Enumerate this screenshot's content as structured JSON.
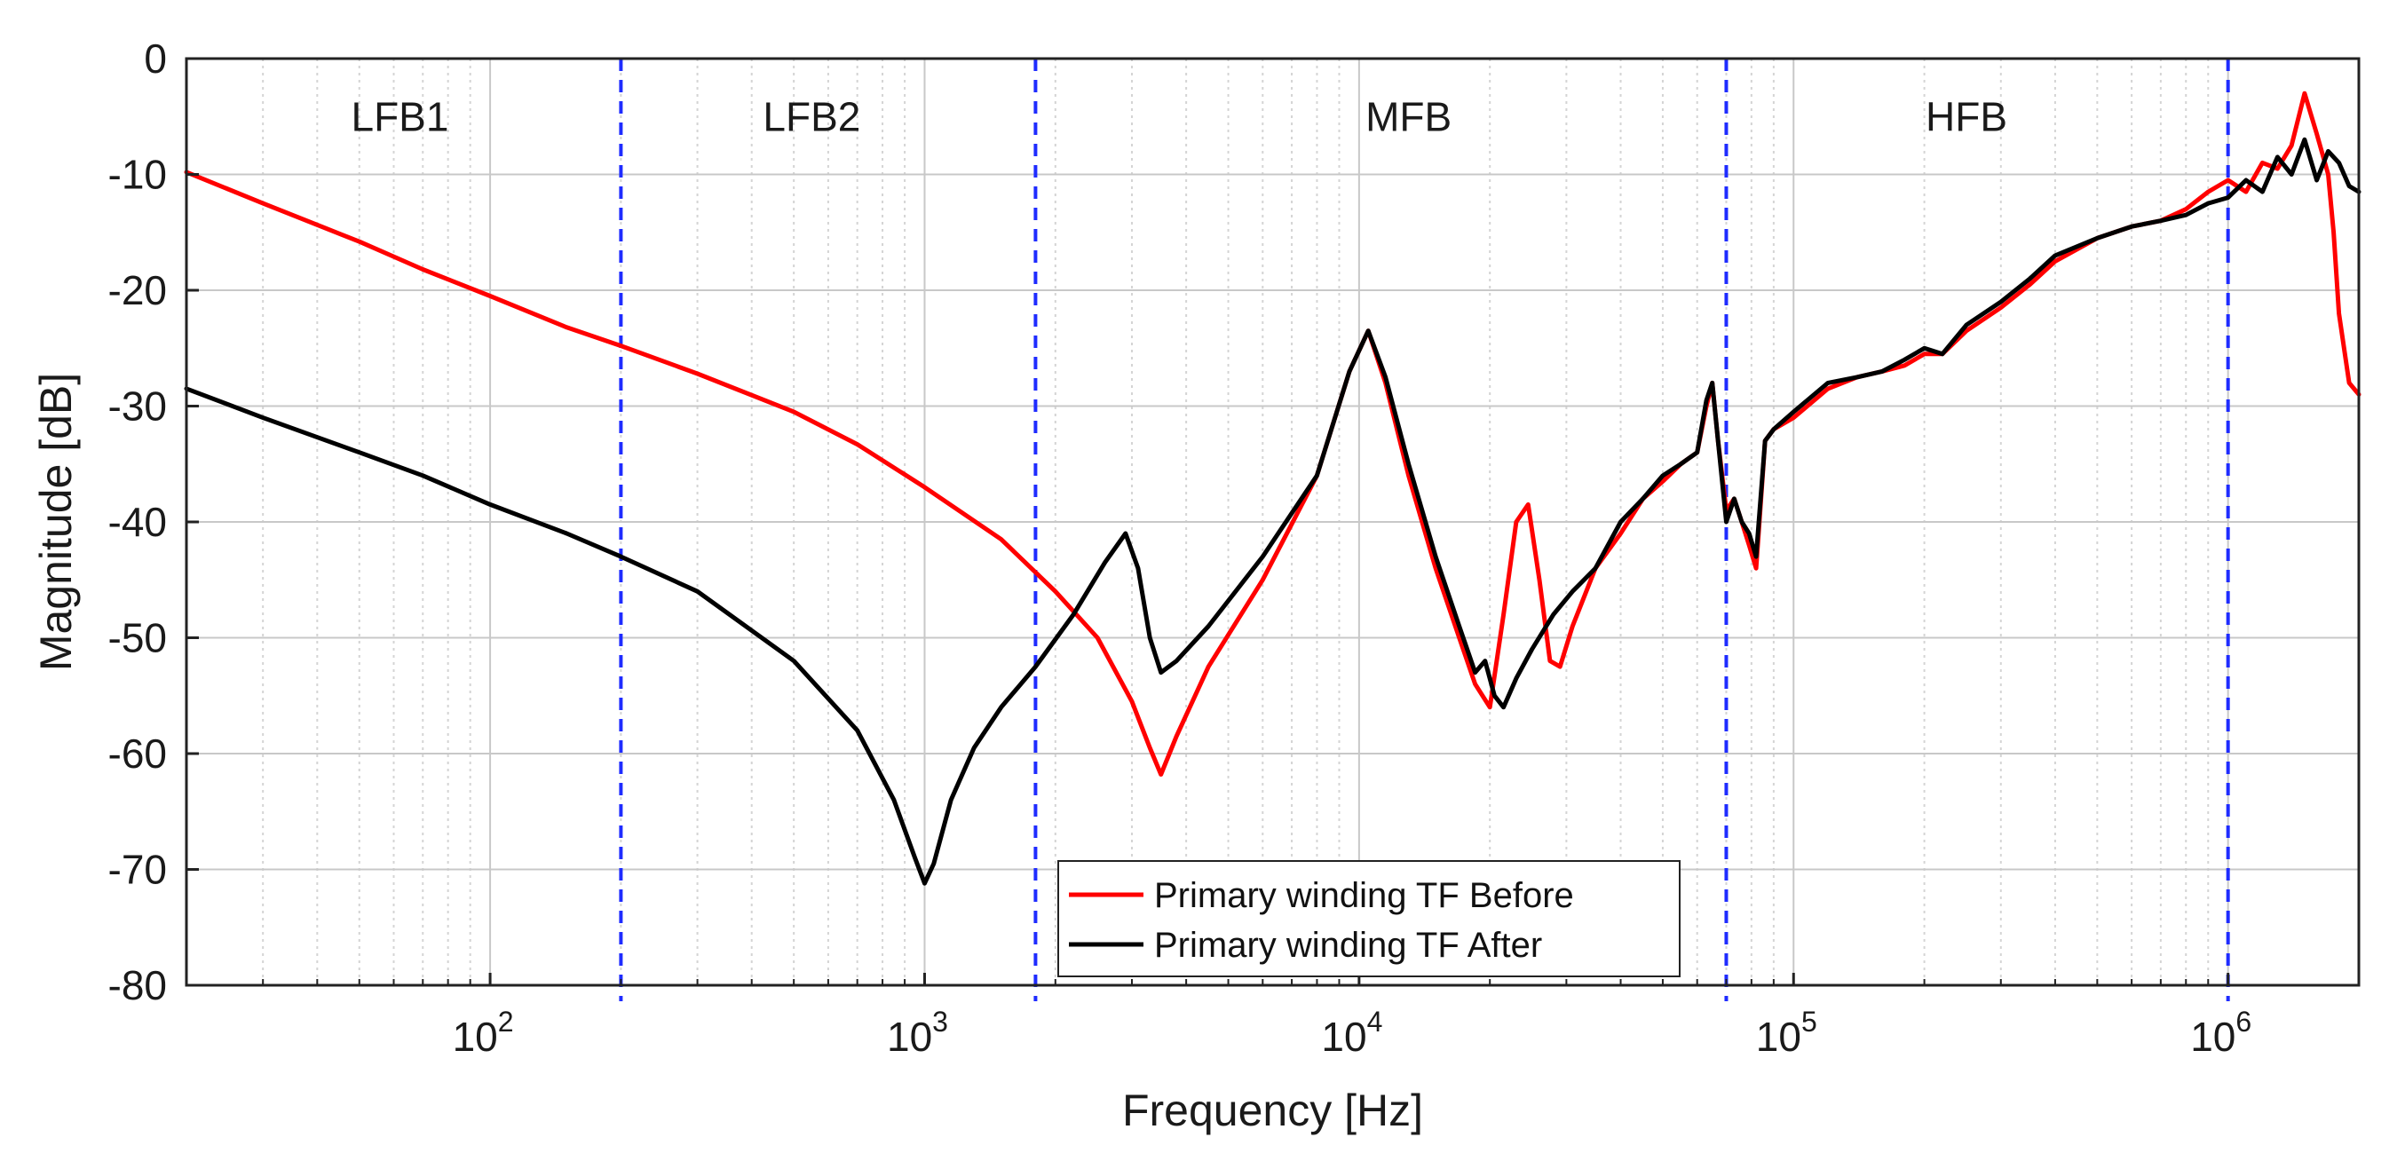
{
  "chart_data": {
    "type": "line",
    "title": "",
    "xlabel": "Frequency [Hz]",
    "ylabel": "Magnitude [dB]",
    "xscale": "log",
    "xlim": [
      20,
      2000000
    ],
    "ylim": [
      -80,
      0
    ],
    "grid": true,
    "minor_grid": true,
    "x_ticks": [
      {
        "value": 100,
        "base": "10",
        "exp": "2"
      },
      {
        "value": 1000,
        "base": "10",
        "exp": "3"
      },
      {
        "value": 10000,
        "base": "10",
        "exp": "4"
      },
      {
        "value": 100000,
        "base": "10",
        "exp": "5"
      },
      {
        "value": 1000000,
        "base": "10",
        "exp": "6"
      }
    ],
    "y_ticks": [
      0,
      -10,
      -20,
      -30,
      -40,
      -50,
      -60,
      -70,
      -80
    ],
    "bands": [
      {
        "boundary": 200
      },
      {
        "boundary": 1800
      },
      {
        "boundary": 70000
      },
      {
        "boundary": 1000000
      }
    ],
    "band_labels": [
      {
        "label": "LFB1",
        "x": 62,
        "y": -5
      },
      {
        "label": "LFB2",
        "x": 550,
        "y": -5
      },
      {
        "label": "MFB",
        "x": 13000,
        "y": -5
      },
      {
        "label": "HFB",
        "x": 250000,
        "y": -5
      }
    ],
    "legend": {
      "position": "bottom-center"
    },
    "series": [
      {
        "name": "Primary winding TF Before",
        "color": "#ff0000",
        "x": [
          20,
          30,
          50,
          70,
          100,
          150,
          200,
          300,
          500,
          700,
          1000,
          1500,
          2000,
          2500,
          3000,
          3300,
          3500,
          3800,
          4500,
          6000,
          8000,
          9500,
          10500,
          11500,
          13000,
          15000,
          17000,
          18500,
          20000,
          21500,
          23000,
          24500,
          26000,
          27500,
          29000,
          31000,
          35000,
          40000,
          45000,
          50000,
          55000,
          60000,
          63000,
          65000,
          67000,
          70000,
          73000,
          76000,
          79000,
          82000,
          86000,
          90000,
          100000,
          120000,
          140000,
          160000,
          180000,
          200000,
          220000,
          250000,
          300000,
          350000,
          400000,
          500000,
          600000,
          700000,
          800000,
          900000,
          1000000,
          1100000,
          1200000,
          1300000,
          1400000,
          1500000,
          1600000,
          1700000,
          1750000,
          1800000,
          1900000,
          2000000
        ],
        "y": [
          -9.8,
          -12.5,
          -15.8,
          -18.2,
          -20.5,
          -23.2,
          -24.8,
          -27.2,
          -30.5,
          -33.3,
          -37.0,
          -41.5,
          -46.0,
          -50.0,
          -55.5,
          -59.5,
          -61.8,
          -58.5,
          -52.5,
          -45.0,
          -36.0,
          -27.0,
          -23.5,
          -28.0,
          -36.0,
          -44.0,
          -50.0,
          -54.0,
          -56.0,
          -48.0,
          -40.0,
          -38.5,
          -45.0,
          -52.0,
          -52.5,
          -49.0,
          -44.0,
          -41.0,
          -38.0,
          -36.5,
          -35.0,
          -34.0,
          -30.0,
          -28.0,
          -33.0,
          -39.0,
          -38.0,
          -40.0,
          -42.0,
          -44.0,
          -33.0,
          -32.0,
          -31.0,
          -28.5,
          -27.5,
          -27.0,
          -26.5,
          -25.5,
          -25.5,
          -23.5,
          -21.5,
          -19.5,
          -17.5,
          -15.5,
          -14.5,
          -14.0,
          -13.0,
          -11.5,
          -10.5,
          -11.5,
          -9.0,
          -9.5,
          -7.5,
          -3.0,
          -6.5,
          -10.0,
          -15.0,
          -22.0,
          -28.0,
          -29.0
        ]
      },
      {
        "name": "Primary winding TF After",
        "color": "#000000",
        "x": [
          20,
          30,
          50,
          70,
          100,
          150,
          200,
          300,
          500,
          700,
          850,
          950,
          1000,
          1050,
          1150,
          1300,
          1500,
          1800,
          2200,
          2600,
          2900,
          3100,
          3300,
          3500,
          3800,
          4500,
          6000,
          8000,
          9500,
          10500,
          11500,
          13000,
          15000,
          17000,
          18500,
          19500,
          20500,
          21500,
          23000,
          25000,
          28000,
          31000,
          35000,
          40000,
          45000,
          50000,
          55000,
          60000,
          63000,
          65000,
          67000,
          70000,
          73000,
          76000,
          79000,
          82000,
          86000,
          90000,
          100000,
          120000,
          140000,
          160000,
          180000,
          200000,
          220000,
          250000,
          300000,
          350000,
          400000,
          500000,
          600000,
          700000,
          800000,
          900000,
          1000000,
          1100000,
          1200000,
          1300000,
          1400000,
          1500000,
          1600000,
          1700000,
          1800000,
          1900000,
          2000000
        ],
        "y": [
          -28.5,
          -31.0,
          -34.0,
          -36.0,
          -38.5,
          -41.0,
          -43.0,
          -46.0,
          -52.0,
          -58.0,
          -64.0,
          -69.0,
          -71.2,
          -69.5,
          -64.0,
          -59.5,
          -56.0,
          -52.5,
          -48.0,
          -43.5,
          -41.0,
          -44.0,
          -50.0,
          -53.0,
          -52.0,
          -49.0,
          -43.0,
          -36.0,
          -27.0,
          -23.5,
          -27.5,
          -35.0,
          -43.0,
          -49.0,
          -53.0,
          -52.0,
          -55.0,
          -56.0,
          -53.5,
          -51.0,
          -48.0,
          -46.0,
          -44.0,
          -40.0,
          -38.0,
          -36.0,
          -35.0,
          -34.0,
          -29.5,
          -28.0,
          -33.0,
          -40.0,
          -38.0,
          -40.0,
          -41.0,
          -43.0,
          -33.0,
          -32.0,
          -30.5,
          -28.0,
          -27.5,
          -27.0,
          -26.0,
          -25.0,
          -25.5,
          -23.0,
          -21.0,
          -19.0,
          -17.0,
          -15.5,
          -14.5,
          -14.0,
          -13.5,
          -12.5,
          -12.0,
          -10.5,
          -11.5,
          -8.5,
          -10.0,
          -7.0,
          -10.5,
          -8.0,
          -9.0,
          -11.0,
          -11.5
        ]
      }
    ]
  }
}
